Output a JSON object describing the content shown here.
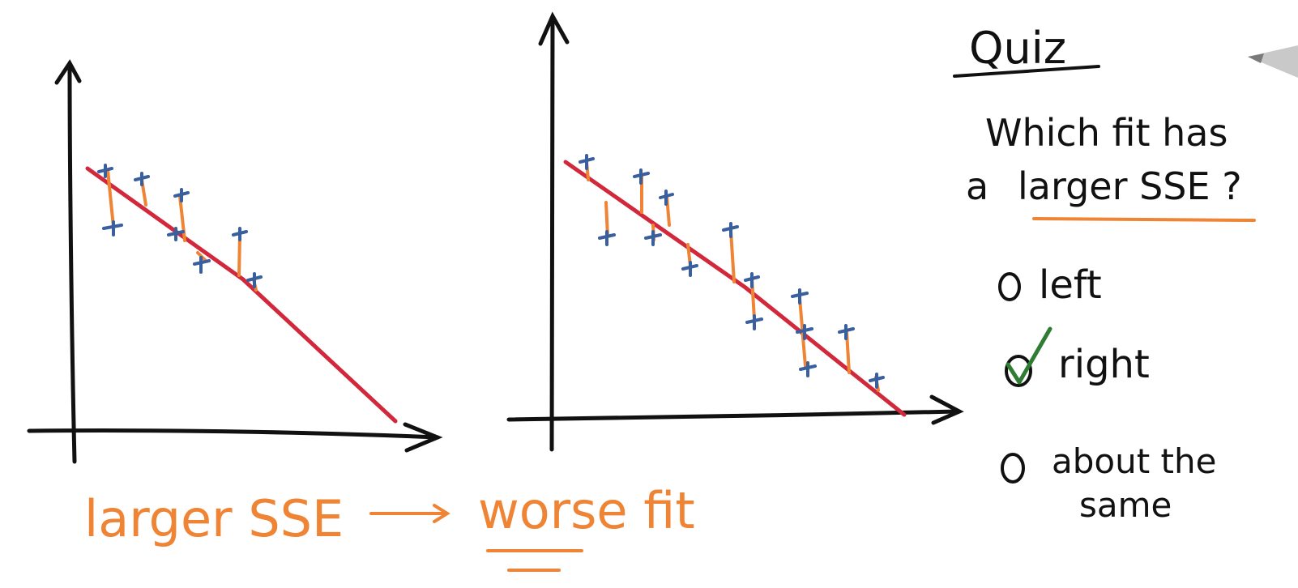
{
  "quiz": {
    "title": "Quiz",
    "question_line1": "Which fit has",
    "question_line2_prefix": "a",
    "question_line2_emphasis": "larger SSE ?",
    "options": [
      {
        "label": "left",
        "checked": false
      },
      {
        "label": "right",
        "checked": true
      },
      {
        "label_line1": "about the",
        "label_line2": "same",
        "checked": false
      }
    ]
  },
  "caption": {
    "left": "larger SSE",
    "right": "worse fit"
  },
  "colors": {
    "ink": "#111111",
    "fit_line": "#d2283c",
    "residual": "#ee8434",
    "point": "#3a5f9e",
    "check": "#2e7d32"
  },
  "icons": {
    "check": "check-icon",
    "pencil": "pencil-icon"
  }
}
